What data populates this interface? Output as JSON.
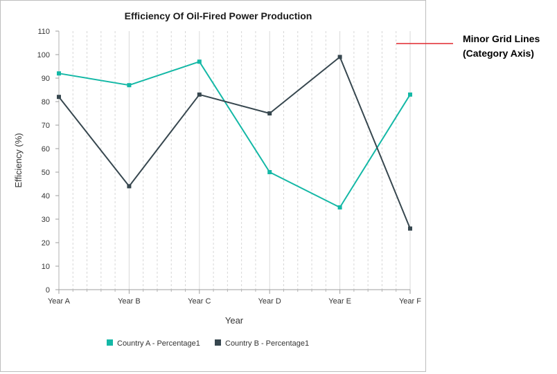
{
  "chart_data": {
    "type": "line",
    "title": "Efficiency Of Oil-Fired Power Production",
    "xlabel": "Year",
    "ylabel": "Efficiency (%)",
    "categories": [
      "Year A",
      "Year B",
      "Year C",
      "Year D",
      "Year E",
      "Year F"
    ],
    "ylim": [
      0,
      110
    ],
    "yticks": [
      0,
      10,
      20,
      30,
      40,
      50,
      60,
      70,
      80,
      90,
      100,
      110
    ],
    "series": [
      {
        "name": "Country A - Percentage1",
        "color": "#14b8a6",
        "values": [
          92,
          87,
          97,
          50,
          35,
          83
        ]
      },
      {
        "name": "Country B - Percentage1",
        "color": "#37474f",
        "values": [
          82,
          44,
          83,
          75,
          99,
          26
        ]
      }
    ],
    "legend_position": "bottom"
  },
  "annotation": {
    "line1": "Minor Grid Lines",
    "line2": "(Category Axis)",
    "color": "#e0262d"
  }
}
